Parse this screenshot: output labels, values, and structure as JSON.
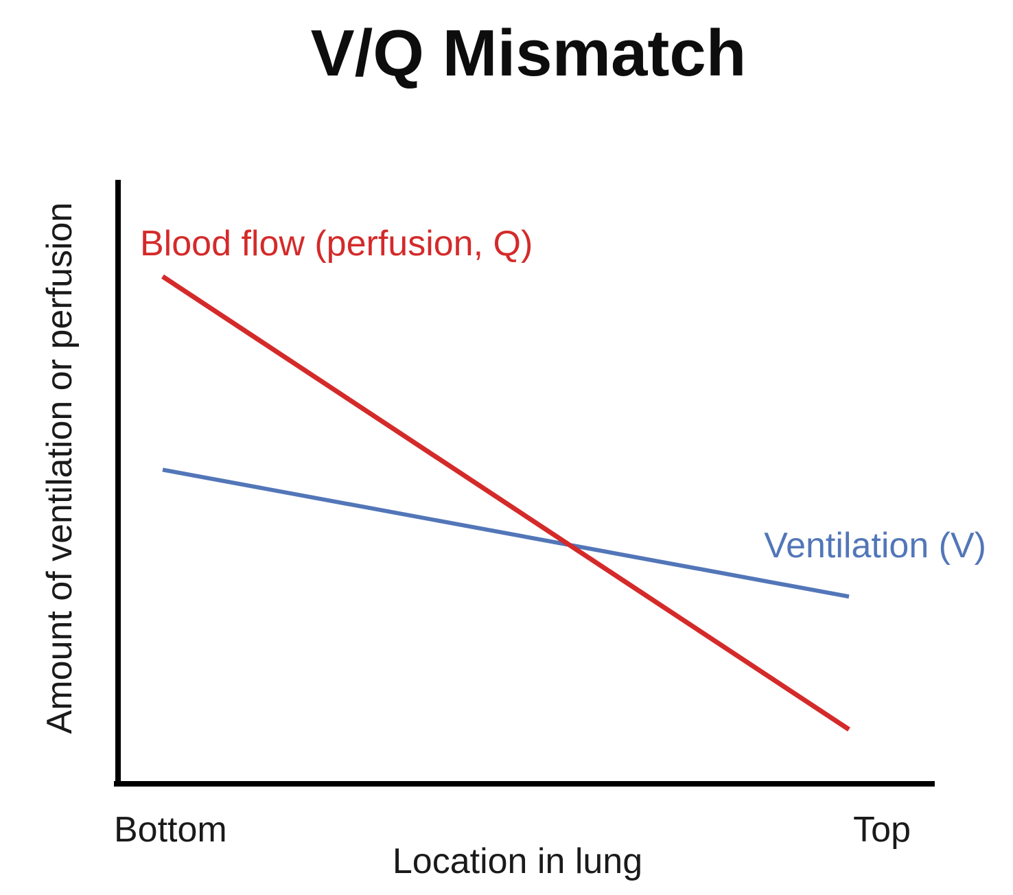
{
  "chart_data": {
    "type": "line",
    "title": "V/Q Mismatch",
    "xlabel": "Location in lung",
    "ylabel": "Amount of ventilation or perfusion",
    "categories": [
      "Bottom",
      "Top"
    ],
    "ylim": [
      0,
      100
    ],
    "grid": false,
    "legend": "inline labels",
    "series": [
      {
        "name": "Blood flow (perfusion, Q)",
        "color": "#d42a2a",
        "values": [
          84,
          9
        ]
      },
      {
        "name": "Ventilation (V)",
        "color": "#5276b8",
        "values": [
          52,
          31
        ]
      }
    ]
  }
}
